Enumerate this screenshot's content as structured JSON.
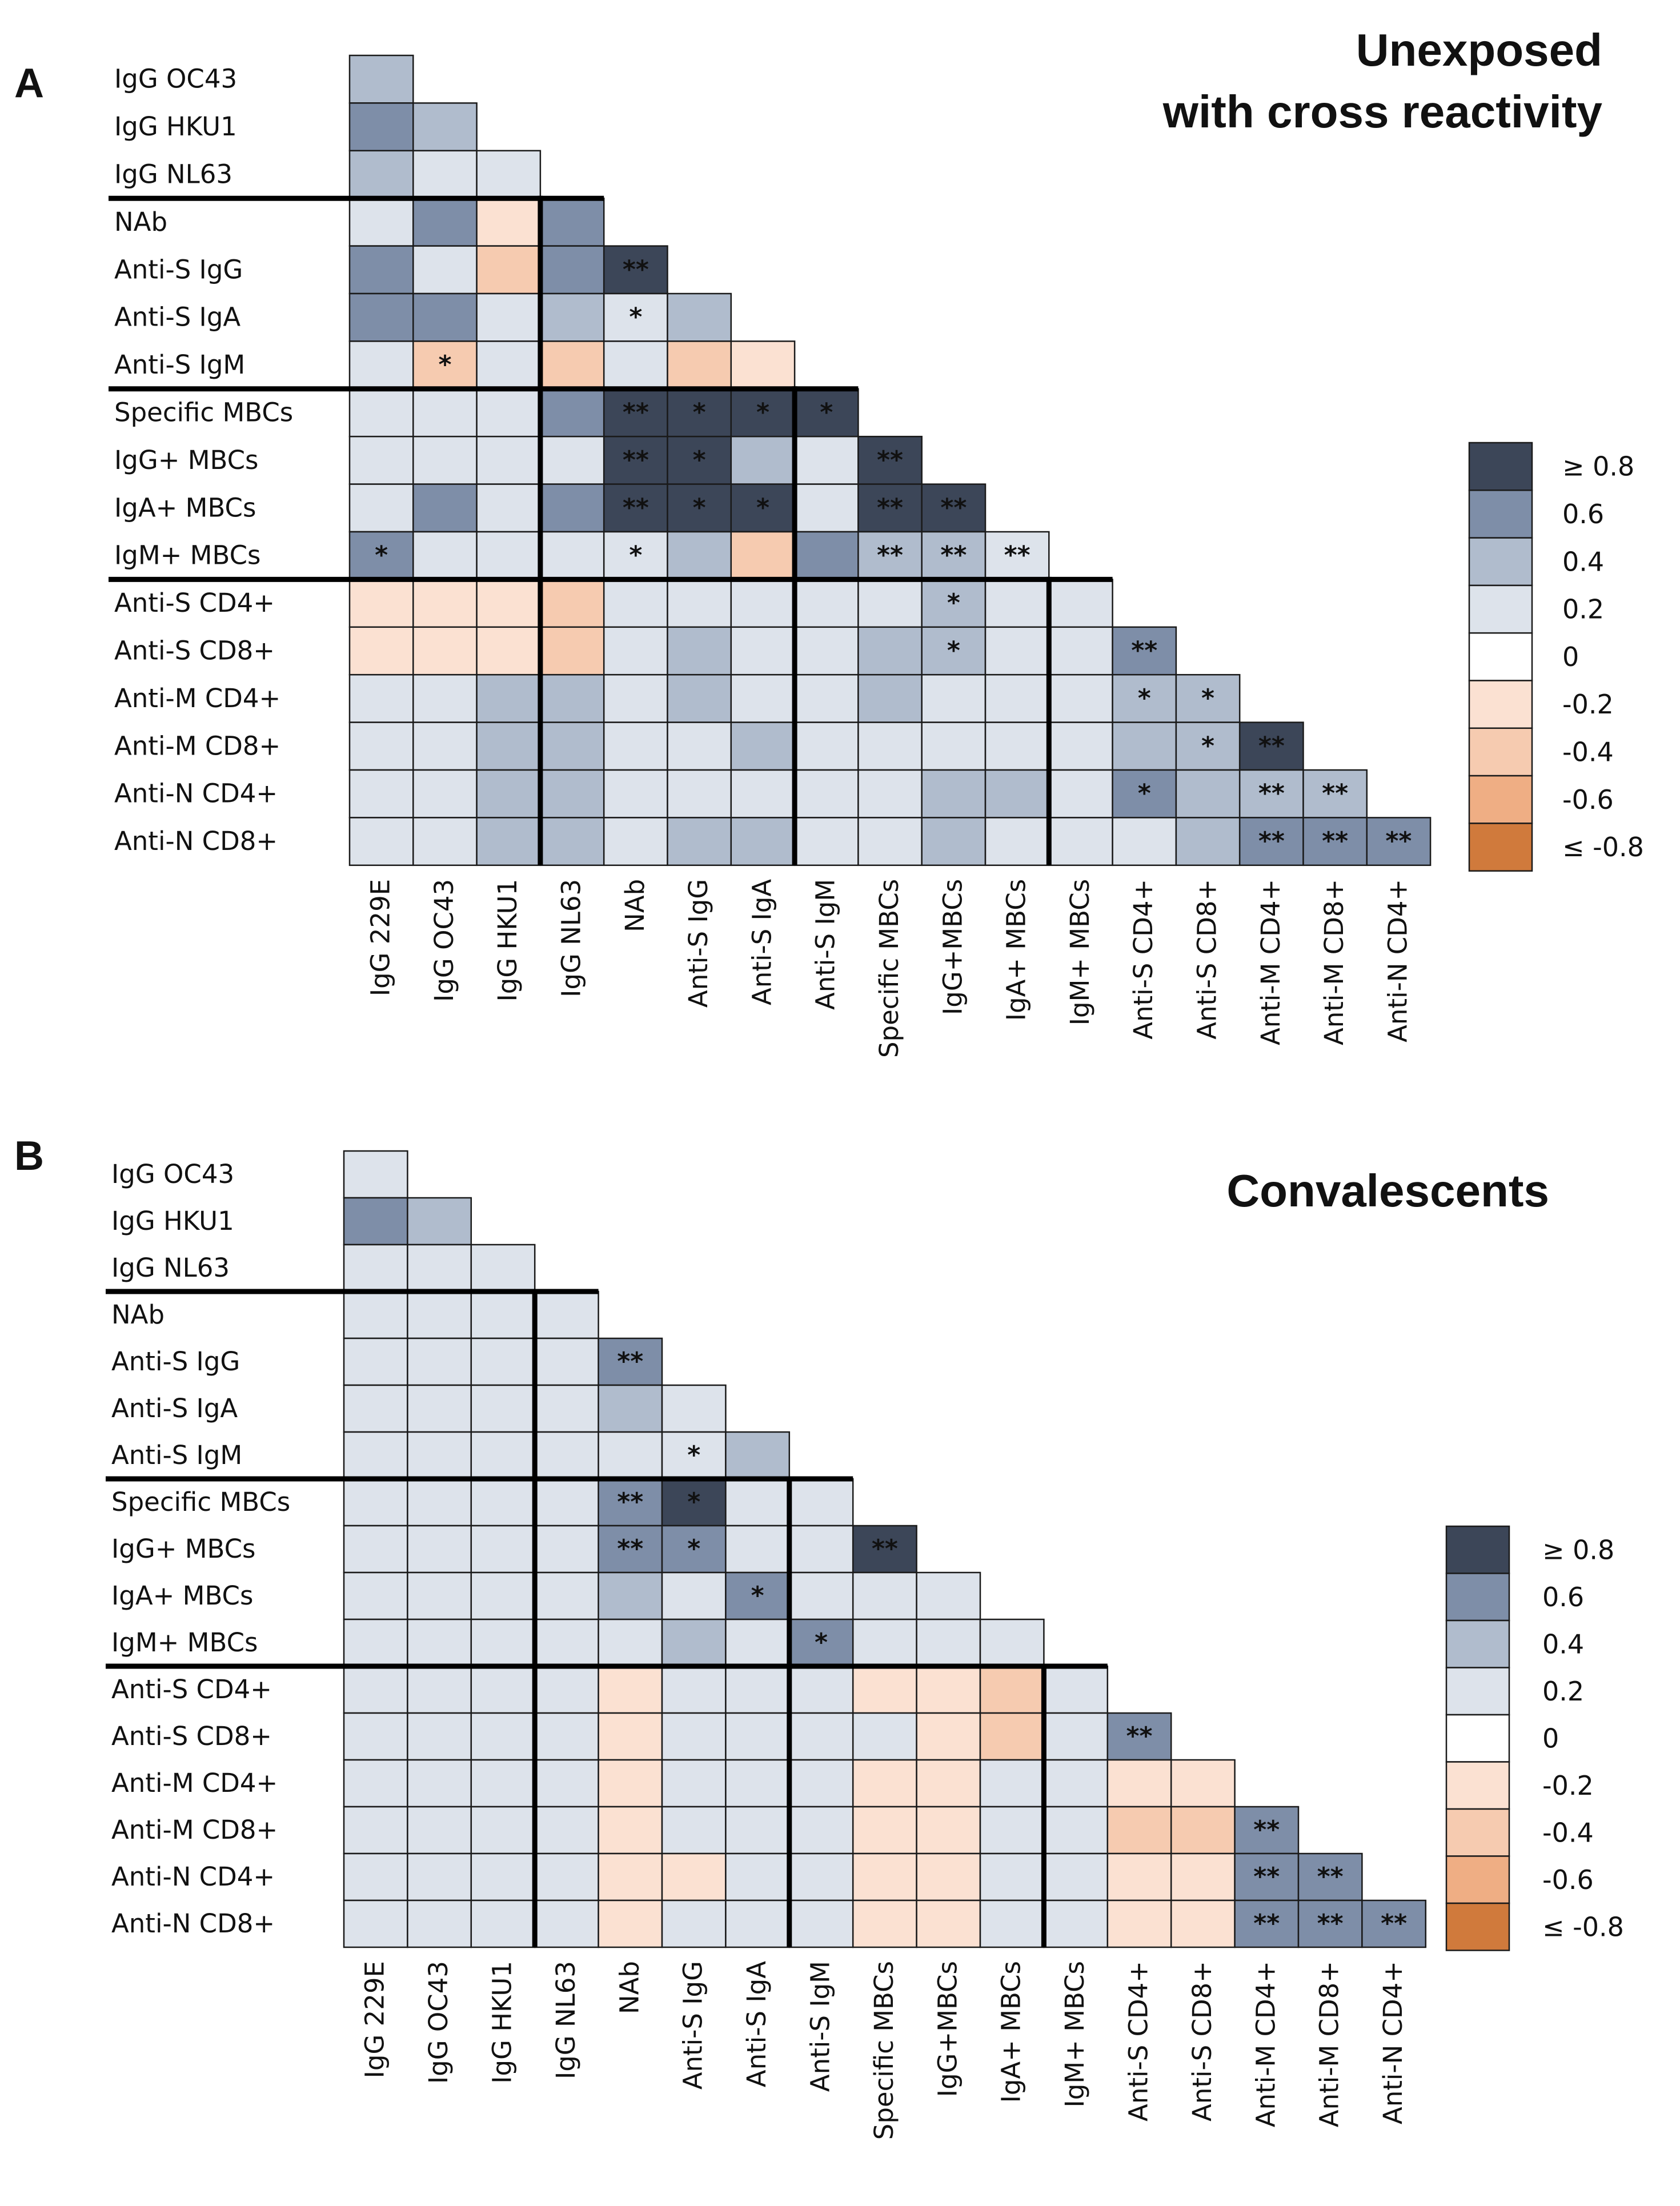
{
  "chart_data": [
    {
      "type": "heatmap",
      "panel": "A",
      "title": "Unexposed\nwith cross reactivity",
      "row_labels": [
        "IgG OC43",
        "IgG HKU1",
        "IgG NL63",
        "NAb",
        "Anti-S IgG",
        "Anti-S IgA",
        "Anti-S IgM",
        "Specific MBCs",
        "IgG+ MBCs",
        "IgA+ MBCs",
        "IgM+ MBCs",
        "Anti-S CD4+",
        "Anti-S CD8+",
        "Anti-M CD4+",
        "Anti-M CD8+",
        "Anti-N CD4+",
        "Anti-N CD8+"
      ],
      "col_labels": [
        "IgG 229E",
        "IgG OC43",
        "IgG HKU1",
        "IgG NL63",
        "NAb",
        "Anti-S IgG",
        "Anti-S IgA",
        "Anti-S IgM",
        "Specific MBCs",
        "IgG+MBCs",
        "IgA+ MBCs",
        "IgM+ MBCs",
        "Anti-S CD4+",
        "Anti-S CD8+",
        "Anti-M CD4+",
        "Anti-M CD8+",
        "Anti-N CD4+"
      ],
      "group_boundaries_after_row": [
        3,
        7,
        11
      ],
      "values": [
        [
          0.3
        ],
        [
          0.5,
          0.3
        ],
        [
          0.3,
          0.2,
          0.2
        ],
        [
          0.2,
          0.5,
          -0.2,
          0.5
        ],
        [
          0.5,
          0.2,
          -0.3,
          0.5,
          0.9
        ],
        [
          0.5,
          0.5,
          0.2,
          0.3,
          0.2,
          0.3
        ],
        [
          0.2,
          -0.3,
          0.2,
          -0.3,
          0.2,
          -0.3,
          -0.2
        ],
        [
          0.2,
          0.2,
          0.2,
          0.5,
          0.9,
          0.9,
          0.9,
          0.9
        ],
        [
          0.2,
          0.2,
          0.2,
          0.2,
          0.9,
          0.9,
          0.3,
          0.2,
          0.9
        ],
        [
          0.2,
          0.5,
          0.2,
          0.5,
          0.9,
          0.9,
          0.9,
          0.2,
          0.9,
          0.9
        ],
        [
          0.5,
          0.2,
          0.2,
          0.2,
          0.2,
          0.3,
          -0.3,
          0.5,
          0.3,
          0.3,
          0.2
        ],
        [
          -0.2,
          -0.2,
          -0.2,
          -0.3,
          0.2,
          0.2,
          0.2,
          0.2,
          0.2,
          0.3,
          0.2,
          0.2
        ],
        [
          -0.2,
          -0.2,
          -0.2,
          -0.3,
          0.2,
          0.3,
          0.2,
          0.2,
          0.3,
          0.3,
          0.2,
          0.2,
          0.6
        ],
        [
          0.2,
          0.2,
          0.3,
          0.3,
          0.2,
          0.3,
          0.2,
          0.2,
          0.3,
          0.2,
          0.2,
          0.2,
          0.3,
          0.3
        ],
        [
          0.2,
          0.2,
          0.3,
          0.3,
          0.2,
          0.2,
          0.3,
          0.2,
          0.2,
          0.2,
          0.2,
          0.2,
          0.3,
          0.3,
          0.9
        ],
        [
          0.2,
          0.2,
          0.3,
          0.3,
          0.2,
          0.2,
          0.2,
          0.2,
          0.2,
          0.3,
          0.3,
          0.2,
          0.5,
          0.3,
          0.3,
          0.3
        ],
        [
          0.2,
          0.2,
          0.3,
          0.3,
          0.2,
          0.3,
          0.3,
          0.2,
          0.2,
          0.3,
          0.2,
          0.2,
          0.2,
          0.3,
          0.5,
          0.5,
          0.5
        ]
      ],
      "significance": [
        [
          "",
          "",
          "",
          "",
          "",
          "",
          "",
          "",
          "",
          "",
          "",
          "",
          "",
          "",
          "",
          "",
          ""
        ],
        [
          "",
          "",
          "",
          "",
          "",
          "",
          "",
          "",
          "",
          "",
          "",
          "",
          "",
          "",
          "",
          "",
          ""
        ],
        [
          "",
          "",
          "",
          "",
          "",
          "",
          "",
          "",
          "",
          "",
          "",
          "",
          "",
          "",
          "",
          "",
          ""
        ],
        [
          "",
          "",
          "",
          "",
          "",
          "",
          "",
          "",
          "",
          "",
          "",
          "",
          "",
          "",
          "",
          "",
          ""
        ],
        [
          "",
          "",
          "",
          "",
          "**",
          "",
          "",
          "",
          "",
          "",
          "",
          "",
          "",
          "",
          "",
          "",
          ""
        ],
        [
          "",
          "",
          "",
          "",
          "*",
          "",
          "",
          "",
          "",
          "",
          "",
          "",
          "",
          "",
          "",
          "",
          ""
        ],
        [
          "",
          "*",
          "",
          "",
          "",
          "",
          "",
          "",
          "",
          "",
          "",
          "",
          "",
          "",
          "",
          "",
          ""
        ],
        [
          "",
          "",
          "",
          "",
          "**",
          "*",
          "*",
          "*",
          "",
          "",
          "",
          "",
          "",
          "",
          "",
          "",
          ""
        ],
        [
          "",
          "",
          "",
          "",
          "**",
          "*",
          "",
          "",
          "**",
          "",
          "",
          "",
          "",
          "",
          "",
          "",
          ""
        ],
        [
          "",
          "",
          "",
          "",
          "**",
          "*",
          "*",
          "",
          "**",
          "**",
          "",
          "",
          "",
          "",
          "",
          "",
          ""
        ],
        [
          "*",
          "",
          "",
          "",
          "*",
          "",
          "",
          "",
          "**",
          "**",
          "**",
          "",
          "",
          "",
          "",
          "",
          ""
        ],
        [
          "",
          "",
          "",
          "",
          "",
          "",
          "",
          "",
          "",
          "*",
          "",
          "",
          "",
          "",
          "",
          "",
          ""
        ],
        [
          "",
          "",
          "",
          "",
          "",
          "",
          "",
          "",
          "",
          "*",
          "",
          "",
          "**",
          "",
          "",
          "",
          ""
        ],
        [
          "",
          "",
          "",
          "",
          "",
          "",
          "",
          "",
          "",
          "",
          "",
          "",
          "*",
          "*",
          "",
          "",
          ""
        ],
        [
          "",
          "",
          "",
          "",
          "",
          "",
          "",
          "",
          "",
          "",
          "",
          "",
          "",
          "*",
          "**",
          "",
          ""
        ],
        [
          "",
          "",
          "",
          "",
          "",
          "",
          "",
          "",
          "",
          "",
          "",
          "",
          "*",
          "",
          "**",
          "**",
          ""
        ],
        [
          "",
          "",
          "",
          "",
          "",
          "",
          "",
          "",
          "",
          "",
          "",
          "",
          "",
          "",
          "**",
          "**",
          "**"
        ]
      ]
    },
    {
      "type": "heatmap",
      "panel": "B",
      "title": "Convalescents",
      "row_labels": [
        "IgG OC43",
        "IgG HKU1",
        "IgG NL63",
        "NAb",
        "Anti-S IgG",
        "Anti-S IgA",
        "Anti-S IgM",
        "Specific MBCs",
        "IgG+ MBCs",
        "IgA+ MBCs",
        "IgM+ MBCs",
        "Anti-S CD4+",
        "Anti-S CD8+",
        "Anti-M CD4+",
        "Anti-M CD8+",
        "Anti-N CD4+",
        "Anti-N CD8+"
      ],
      "col_labels": [
        "IgG 229E",
        "IgG OC43",
        "IgG HKU1",
        "IgG NL63",
        "NAb",
        "Anti-S IgG",
        "Anti-S IgA",
        "Anti-S IgM",
        "Specific MBCs",
        "IgG+MBCs",
        "IgA+ MBCs",
        "IgM+ MBCs",
        "Anti-S CD4+",
        "Anti-S CD8+",
        "Anti-M CD4+",
        "Anti-M CD8+",
        "Anti-N CD4+"
      ],
      "group_boundaries_after_row": [
        3,
        7,
        11
      ],
      "values": [
        [
          0.2
        ],
        [
          0.5,
          0.3
        ],
        [
          0.2,
          0.2,
          0.2
        ],
        [
          0.2,
          0.2,
          0.2,
          0.2
        ],
        [
          0.2,
          0.2,
          0.2,
          0.2,
          0.5
        ],
        [
          0.2,
          0.2,
          0.2,
          0.2,
          0.3,
          0.2
        ],
        [
          0.2,
          0.2,
          0.2,
          0.2,
          0.2,
          0.2,
          0.3
        ],
        [
          0.2,
          0.2,
          0.2,
          0.2,
          0.5,
          0.9,
          0.1,
          0.1
        ],
        [
          0.2,
          0.2,
          0.2,
          0.2,
          0.5,
          0.5,
          0.2,
          0.2,
          0.9
        ],
        [
          0.2,
          0.2,
          0.2,
          0.2,
          0.3,
          0.2,
          0.5,
          0.2,
          0.2,
          0.2
        ],
        [
          0.2,
          0.2,
          0.2,
          0.2,
          0.2,
          0.3,
          0.2,
          0.5,
          0.2,
          0.2,
          0.2
        ],
        [
          0.2,
          0.2,
          0.2,
          0.2,
          -0.2,
          0.2,
          0.2,
          0.2,
          -0.2,
          -0.2,
          -0.3,
          0.2
        ],
        [
          0.2,
          0.2,
          0.2,
          0.2,
          -0.2,
          0.2,
          0.2,
          0.2,
          0.2,
          -0.2,
          -0.3,
          0.2,
          0.5
        ],
        [
          0.2,
          0.2,
          0.2,
          0.2,
          -0.2,
          0.2,
          0.2,
          0.2,
          -0.2,
          -0.2,
          0.2,
          0.2,
          -0.2,
          -0.2
        ],
        [
          0.2,
          0.2,
          0.2,
          0.2,
          -0.2,
          0.2,
          0.2,
          0.2,
          -0.2,
          -0.2,
          0.2,
          0.2,
          -0.3,
          -0.3,
          0.5
        ],
        [
          0.2,
          0.2,
          0.2,
          0.2,
          -0.2,
          -0.2,
          0.2,
          0.2,
          -0.2,
          -0.2,
          0.2,
          0.2,
          -0.2,
          -0.2,
          0.5,
          0.5
        ],
        [
          0.2,
          0.2,
          0.2,
          0.2,
          -0.2,
          0.2,
          0.2,
          0.2,
          -0.2,
          -0.2,
          0.2,
          0.2,
          -0.2,
          -0.2,
          0.5,
          0.5,
          0.5
        ]
      ],
      "significance": [
        [
          "",
          "",
          "",
          "",
          "",
          "",
          "",
          "",
          "",
          "",
          "",
          "",
          "",
          "",
          "",
          "",
          ""
        ],
        [
          "",
          "",
          "",
          "",
          "",
          "",
          "",
          "",
          "",
          "",
          "",
          "",
          "",
          "",
          "",
          "",
          ""
        ],
        [
          "",
          "",
          "",
          "",
          "",
          "",
          "",
          "",
          "",
          "",
          "",
          "",
          "",
          "",
          "",
          "",
          ""
        ],
        [
          "",
          "",
          "",
          "",
          "",
          "",
          "",
          "",
          "",
          "",
          "",
          "",
          "",
          "",
          "",
          "",
          ""
        ],
        [
          "",
          "",
          "",
          "",
          "**",
          "",
          "",
          "",
          "",
          "",
          "",
          "",
          "",
          "",
          "",
          "",
          ""
        ],
        [
          "",
          "",
          "",
          "",
          "",
          "",
          "",
          "",
          "",
          "",
          "",
          "",
          "",
          "",
          "",
          "",
          ""
        ],
        [
          "",
          "",
          "",
          "",
          "",
          "*",
          "",
          "",
          "",
          "",
          "",
          "",
          "",
          "",
          "",
          "",
          ""
        ],
        [
          "",
          "",
          "",
          "",
          "**",
          "*",
          "",
          "",
          "",
          "",
          "",
          "",
          "",
          "",
          "",
          "",
          ""
        ],
        [
          "",
          "",
          "",
          "",
          "**",
          "*",
          "",
          "",
          "**",
          "",
          "",
          "",
          "",
          "",
          "",
          "",
          ""
        ],
        [
          "",
          "",
          "",
          "",
          "",
          "",
          "*",
          "",
          "",
          "",
          "",
          "",
          "",
          "",
          "",
          "",
          ""
        ],
        [
          "",
          "",
          "",
          "",
          "",
          "",
          "",
          "*",
          "",
          "",
          "",
          "",
          "",
          "",
          "",
          "",
          ""
        ],
        [
          "",
          "",
          "",
          "",
          "",
          "",
          "",
          "",
          "",
          "",
          "",
          "",
          "",
          "",
          "",
          "",
          ""
        ],
        [
          "",
          "",
          "",
          "",
          "",
          "",
          "",
          "",
          "",
          "",
          "",
          "",
          "**",
          "",
          "",
          "",
          ""
        ],
        [
          "",
          "",
          "",
          "",
          "",
          "",
          "",
          "",
          "",
          "",
          "",
          "",
          "",
          "",
          "",
          "",
          ""
        ],
        [
          "",
          "",
          "",
          "",
          "",
          "",
          "",
          "",
          "",
          "",
          "",
          "",
          "",
          "",
          "**",
          "",
          ""
        ],
        [
          "",
          "",
          "",
          "",
          "",
          "",
          "",
          "",
          "",
          "",
          "",
          "",
          "",
          "",
          "**",
          "**",
          ""
        ],
        [
          "",
          "",
          "",
          "",
          "",
          "",
          "",
          "",
          "",
          "",
          "",
          "",
          "",
          "",
          "**",
          "**",
          "**"
        ]
      ]
    }
  ],
  "legend": {
    "labels": [
      "≥ 0.8",
      "0.6",
      "0.4",
      "0.2",
      "0",
      "-0.2",
      "-0.4",
      "-0.6",
      "≤ -0.8"
    ],
    "colors": [
      "#3c4658",
      "#7e8ea8",
      "#b0bccd",
      "#dde3eb",
      "#ffffff",
      "#fbe1d2",
      "#f6cbb0",
      "#efae84",
      "#d07a3c"
    ]
  }
}
